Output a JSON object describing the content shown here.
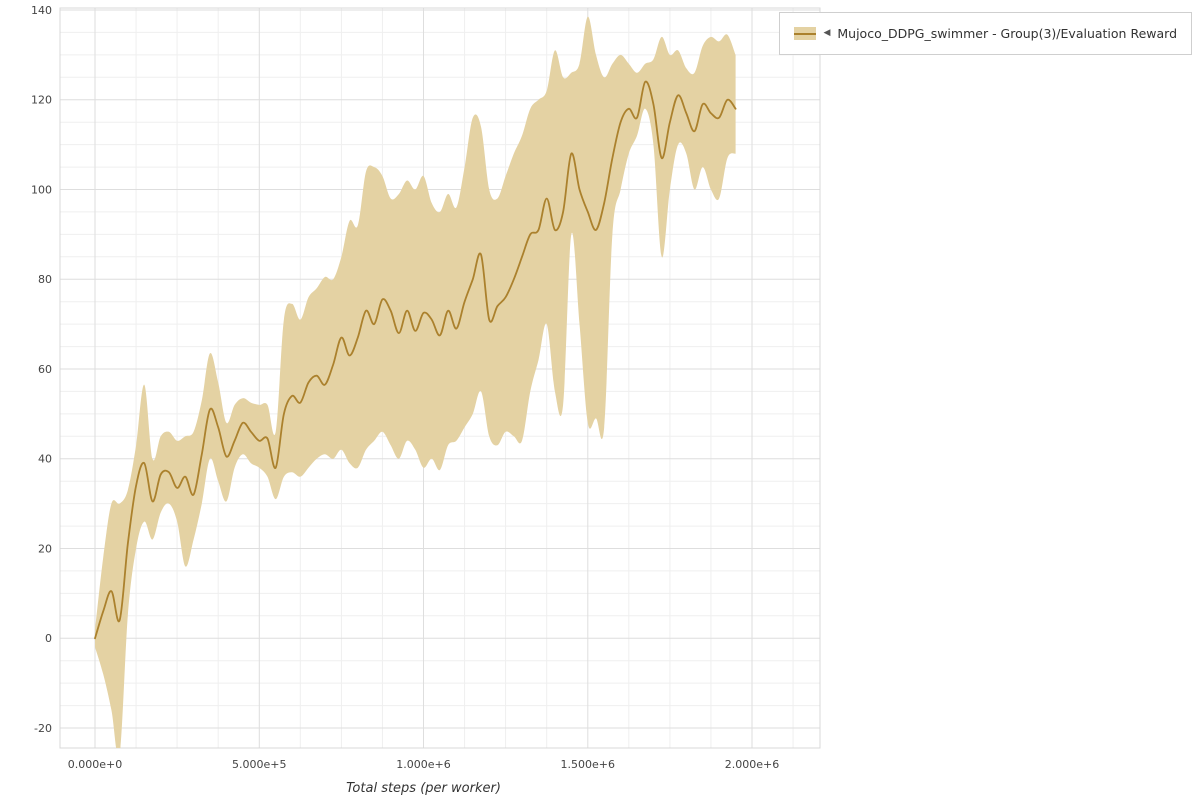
{
  "legend": {
    "collapse_icon": "◀",
    "label": "Mujoco_DDPG_swimmer - Group(3)/Evaluation Reward"
  },
  "colors": {
    "line": "#ab812d",
    "band": "#e4d2a3",
    "grid_major": "#dedede",
    "grid_minor": "#efefef",
    "plot_border": "#d8d8d8",
    "axis_text": "#444444",
    "background": "#ffffff"
  },
  "chart_data": {
    "type": "line",
    "title": "",
    "xlabel": "Total steps (per worker)",
    "ylabel": "",
    "x_unit": "steps (millions)",
    "xlim": [
      0,
      2.0
    ],
    "ylim": [
      -24.5,
      140.5
    ],
    "grid": true,
    "legend_position": "top-right",
    "band_meaning": "shaded min-max / variance region around group mean",
    "xticks": {
      "values": [
        0,
        0.5,
        1.0,
        1.5,
        2.0
      ],
      "labels": [
        "0.000e+0",
        "5.000e+5",
        "1.000e+6",
        "1.500e+6",
        "2.000e+6"
      ]
    },
    "yticks": {
      "values": [
        -20,
        0,
        20,
        40,
        60,
        80,
        100,
        120,
        140
      ],
      "labels": [
        "-20",
        "0",
        "20",
        "40",
        "60",
        "80",
        "100",
        "120",
        "140"
      ]
    },
    "series": [
      {
        "name": "Mujoco_DDPG_swimmer - Group(3)/Evaluation Reward",
        "x": [
          0,
          0.025,
          0.05,
          0.075,
          0.1,
          0.125,
          0.15,
          0.175,
          0.2,
          0.225,
          0.25,
          0.275,
          0.3,
          0.325,
          0.35,
          0.375,
          0.4,
          0.425,
          0.45,
          0.475,
          0.5,
          0.525,
          0.55,
          0.575,
          0.6,
          0.625,
          0.65,
          0.675,
          0.7,
          0.725,
          0.75,
          0.775,
          0.8,
          0.825,
          0.85,
          0.875,
          0.9,
          0.925,
          0.95,
          0.975,
          1.0,
          1.025,
          1.05,
          1.075,
          1.1,
          1.125,
          1.15,
          1.175,
          1.2,
          1.225,
          1.25,
          1.275,
          1.3,
          1.325,
          1.35,
          1.375,
          1.4,
          1.425,
          1.45,
          1.475,
          1.5,
          1.525,
          1.55,
          1.575,
          1.6,
          1.625,
          1.65,
          1.675,
          1.7,
          1.725,
          1.75,
          1.775,
          1.8,
          1.825,
          1.85,
          1.875,
          1.9,
          1.925,
          1.95
        ],
        "mean": [
          0,
          6,
          10.5,
          4,
          21,
          34,
          39,
          30.5,
          36.5,
          37,
          33.5,
          36,
          32,
          41,
          51,
          47,
          40.5,
          44,
          48,
          46,
          44,
          44.5,
          38,
          50,
          54,
          52.5,
          57,
          58.5,
          56.5,
          61,
          67,
          63,
          67,
          73,
          70,
          75.5,
          73,
          68,
          73,
          68.5,
          72.5,
          71,
          67.5,
          73,
          69,
          75,
          80,
          85.5,
          71,
          74,
          76,
          80,
          85,
          90,
          91,
          98,
          91,
          95,
          108,
          100,
          95,
          91,
          97,
          107,
          115,
          118,
          116,
          124,
          119,
          107,
          115,
          121,
          117,
          113,
          119,
          117,
          116,
          120,
          118
        ],
        "lower": [
          -2,
          -8,
          -16,
          -26,
          5,
          20,
          26,
          22,
          28,
          30,
          26,
          16,
          22,
          30,
          40,
          35,
          30.5,
          38,
          41,
          39,
          38,
          36,
          31,
          36,
          37,
          36,
          38,
          40,
          41,
          40,
          42,
          39,
          38,
          42,
          44,
          46,
          43,
          40,
          44,
          42,
          38,
          40,
          37.5,
          43,
          44,
          47,
          50,
          55,
          45,
          43,
          46,
          45,
          44,
          55,
          62,
          70,
          55,
          52,
          90,
          70,
          48,
          49,
          47,
          90,
          100,
          108,
          112,
          118,
          110,
          85,
          100,
          110,
          108,
          100,
          105,
          100,
          98,
          107,
          108
        ],
        "upper": [
          2,
          18,
          30,
          30,
          33,
          43,
          56.5,
          40,
          45,
          46,
          44,
          45,
          46,
          53,
          63.5,
          57,
          48,
          52,
          53.5,
          52.5,
          52,
          52,
          46,
          71,
          74.5,
          71,
          76,
          78,
          80.5,
          80,
          85,
          93,
          92,
          104,
          105,
          103,
          98,
          99,
          102,
          100,
          103,
          97,
          95,
          99,
          96,
          105,
          116,
          114,
          100,
          98,
          103,
          108,
          112,
          118,
          120,
          122,
          131,
          125,
          126,
          128,
          138.5,
          130,
          125,
          128,
          130,
          128,
          126,
          128,
          129,
          134,
          130,
          131,
          127,
          126,
          132,
          134,
          133,
          134.5,
          130
        ]
      }
    ]
  }
}
